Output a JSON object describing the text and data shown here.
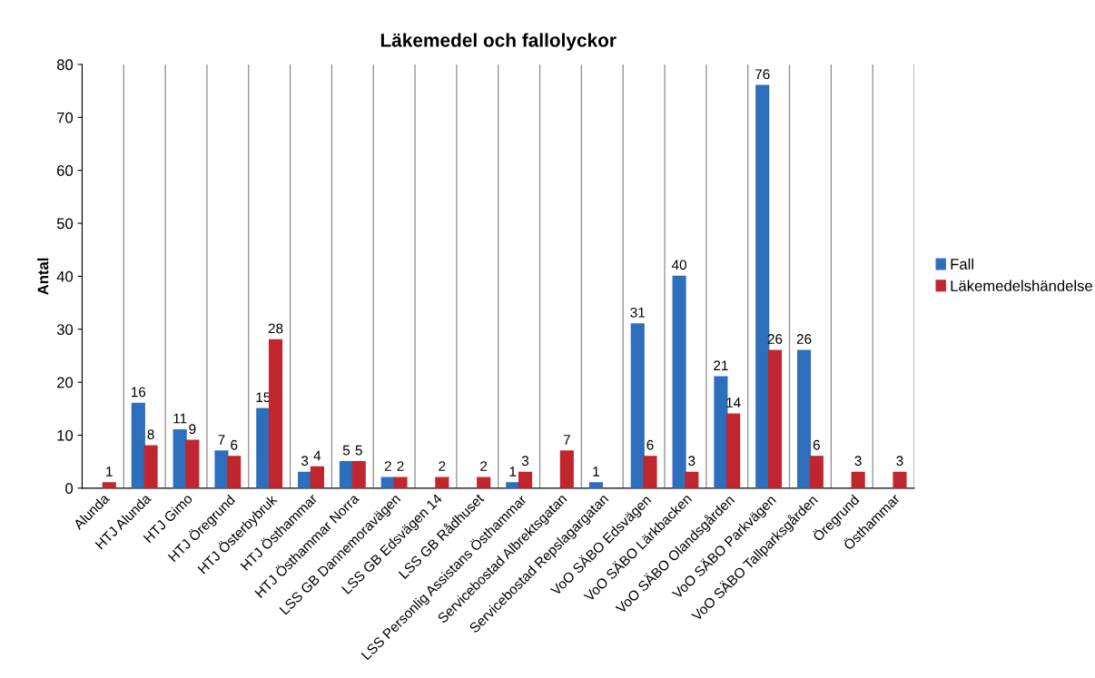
{
  "chart_data": {
    "type": "bar",
    "title": "Läkemedel och fallolyckor",
    "ylabel": "Antal",
    "categories": [
      "Alunda",
      "HTJ Alunda",
      "HTJ Gimo",
      "HTJ Öregrund",
      "HTJ Österbybruk",
      "HTJ Östhammar",
      "HTJ Östhammar Norra",
      "LSS GB Dannemoravägen",
      "LSS GB Edsvägen 14",
      "LSS GB Rådhuset",
      "LSS Personlig Assistans Östhammar",
      "Servicebostad Albrektsgatan",
      "Servicebostad Repslagargatan",
      "VoO SÄBO Edsvägen",
      "VoO SÄBO Lärkbacken",
      "VoO SÄBO Olandsgården",
      "VoO SÄBO Parkvägen",
      "VoO SÄBO Tallparksgården",
      "Öregrund",
      "Östhammar"
    ],
    "series": [
      {
        "name": "Fall",
        "color": "#2e6fbd",
        "values": [
          null,
          16,
          11,
          7,
          15,
          3,
          5,
          2,
          null,
          null,
          1,
          null,
          1,
          31,
          40,
          21,
          76,
          26,
          null,
          null
        ]
      },
      {
        "name": "Läkemedelshändelse",
        "color": "#c0262d",
        "values": [
          1,
          8,
          9,
          6,
          28,
          4,
          5,
          2,
          2,
          2,
          3,
          7,
          null,
          6,
          3,
          14,
          26,
          6,
          3,
          3
        ]
      }
    ],
    "ylim": [
      0,
      80
    ],
    "yticks": [
      0,
      10,
      20,
      30,
      40,
      50,
      60,
      70,
      80
    ],
    "grid": "x",
    "legend": "right",
    "data_labels": true
  }
}
